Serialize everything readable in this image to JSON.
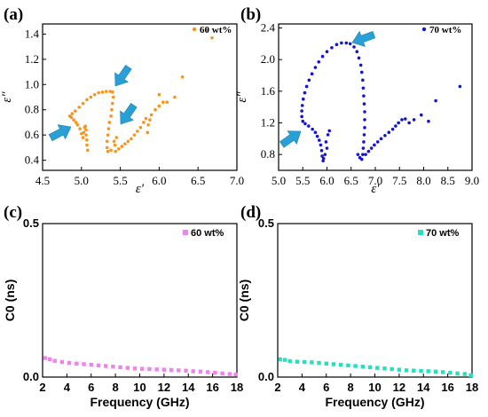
{
  "panels": {
    "a": "(a)",
    "b": "(b)",
    "c": "(c)",
    "d": "(d)"
  },
  "colors": {
    "orange": "#f7941d",
    "blue": "#1515d0",
    "pink": "#ee82ee",
    "teal": "#22e0c0",
    "arrow": "#2a9fd6"
  },
  "chart_data": [
    {
      "id": "a",
      "type": "scatter",
      "title": "",
      "xlabel": "ε′",
      "ylabel": "ε″",
      "xlim": [
        4.5,
        7.0
      ],
      "ylim": [
        0.32,
        1.48
      ],
      "xticks": [
        "4.5",
        "5.0",
        "5.5",
        "6.0",
        "6.5",
        "7.0"
      ],
      "yticks": [
        "0.4",
        "0.6",
        "0.8",
        "1.0",
        "1.2",
        "1.4"
      ],
      "legend": "60 wt%",
      "legend_position": "top-right",
      "series": [
        {
          "points": [
            [
              5.08,
              0.48
            ],
            [
              5.07,
              0.52
            ],
            [
              5.07,
              0.56
            ],
            [
              5.06,
              0.6
            ],
            [
              5.06,
              0.64
            ],
            [
              5.05,
              0.67
            ],
            [
              5.04,
              0.66
            ],
            [
              5.03,
              0.62
            ],
            [
              5.02,
              0.58
            ],
            [
              5.0,
              0.61
            ],
            [
              4.98,
              0.65
            ],
            [
              4.95,
              0.68
            ],
            [
              4.93,
              0.7
            ],
            [
              4.9,
              0.72
            ],
            [
              4.87,
              0.74
            ],
            [
              4.85,
              0.75
            ],
            [
              4.88,
              0.77
            ],
            [
              4.92,
              0.79
            ],
            [
              4.97,
              0.82
            ],
            [
              5.02,
              0.85
            ],
            [
              5.07,
              0.88
            ],
            [
              5.12,
              0.9
            ],
            [
              5.17,
              0.92
            ],
            [
              5.22,
              0.935
            ],
            [
              5.27,
              0.94
            ],
            [
              5.32,
              0.945
            ],
            [
              5.37,
              0.945
            ],
            [
              5.4,
              0.94
            ],
            [
              5.41,
              0.9
            ],
            [
              5.4,
              0.85
            ],
            [
              5.39,
              0.8
            ],
            [
              5.38,
              0.75
            ],
            [
              5.36,
              0.7
            ],
            [
              5.35,
              0.65
            ],
            [
              5.34,
              0.6
            ],
            [
              5.33,
              0.55
            ],
            [
              5.33,
              0.5
            ],
            [
              5.34,
              0.47
            ],
            [
              5.38,
              0.48
            ],
            [
              5.42,
              0.55
            ],
            [
              5.45,
              0.58
            ],
            [
              5.43,
              0.52
            ],
            [
              5.44,
              0.47
            ],
            [
              5.48,
              0.49
            ],
            [
              5.52,
              0.51
            ],
            [
              5.56,
              0.53
            ],
            [
              5.6,
              0.55
            ],
            [
              5.64,
              0.57
            ],
            [
              5.68,
              0.6
            ],
            [
              5.72,
              0.63
            ],
            [
              5.76,
              0.66
            ],
            [
              5.8,
              0.7
            ],
            [
              5.83,
              0.73
            ],
            [
              5.86,
              0.68
            ],
            [
              5.88,
              0.72
            ],
            [
              5.9,
              0.76
            ],
            [
              5.85,
              0.62
            ],
            [
              5.95,
              0.8
            ],
            [
              6.0,
              0.83
            ],
            [
              6.05,
              0.86
            ],
            [
              6.0,
              0.92
            ],
            [
              6.1,
              0.86
            ],
            [
              6.2,
              0.9
            ],
            [
              6.3,
              1.06
            ],
            [
              6.62,
              1.43
            ],
            [
              6.68,
              1.37
            ]
          ]
        }
      ]
    },
    {
      "id": "b",
      "type": "scatter",
      "title": "",
      "xlabel": "ε′",
      "ylabel": "ε″",
      "xlim": [
        5.0,
        9.0
      ],
      "ylim": [
        0.6,
        2.45
      ],
      "xticks": [
        "5.0",
        "5.5",
        "6.0",
        "6.5",
        "7.0",
        "7.5",
        "8.0",
        "8.5",
        "9.0"
      ],
      "yticks": [
        "0.8",
        "1.2",
        "1.6",
        "2.0",
        "2.4"
      ],
      "legend": "70 wt%",
      "legend_position": "top-right",
      "series": [
        {
          "points": [
            [
              5.92,
              0.72
            ],
            [
              5.9,
              0.78
            ],
            [
              5.89,
              0.85
            ],
            [
              5.87,
              0.92
            ],
            [
              5.84,
              0.98
            ],
            [
              5.8,
              1.03
            ],
            [
              5.76,
              1.08
            ],
            [
              5.7,
              1.12
            ],
            [
              5.62,
              1.16
            ],
            [
              5.55,
              1.19
            ],
            [
              5.5,
              1.22
            ],
            [
              5.48,
              1.28
            ],
            [
              5.48,
              1.35
            ],
            [
              5.49,
              1.42
            ],
            [
              5.51,
              1.5
            ],
            [
              5.54,
              1.58
            ],
            [
              5.58,
              1.66
            ],
            [
              5.63,
              1.74
            ],
            [
              5.69,
              1.82
            ],
            [
              5.76,
              1.9
            ],
            [
              5.83,
              1.97
            ],
            [
              5.91,
              2.04
            ],
            [
              6.0,
              2.1
            ],
            [
              6.1,
              2.15
            ],
            [
              6.2,
              2.19
            ],
            [
              6.3,
              2.21
            ],
            [
              6.4,
              2.21
            ],
            [
              6.48,
              2.2
            ],
            [
              6.56,
              2.16
            ],
            [
              6.62,
              2.1
            ],
            [
              6.66,
              2.02
            ],
            [
              6.7,
              1.93
            ],
            [
              6.72,
              1.84
            ],
            [
              6.74,
              1.74
            ],
            [
              6.75,
              1.64
            ],
            [
              6.76,
              1.54
            ],
            [
              6.77,
              1.44
            ],
            [
              6.78,
              1.34
            ],
            [
              6.78,
              1.24
            ],
            [
              6.78,
              1.14
            ],
            [
              6.77,
              1.05
            ],
            [
              6.76,
              0.96
            ],
            [
              6.75,
              0.88
            ],
            [
              6.74,
              0.8
            ],
            [
              6.72,
              0.74
            ],
            [
              6.68,
              0.76
            ],
            [
              6.64,
              0.8
            ],
            [
              6.8,
              0.8
            ],
            [
              6.86,
              0.84
            ],
            [
              6.92,
              0.88
            ],
            [
              6.98,
              0.92
            ],
            [
              7.05,
              0.96
            ],
            [
              7.12,
              1.0
            ],
            [
              7.2,
              1.04
            ],
            [
              7.28,
              1.08
            ],
            [
              7.36,
              1.12
            ],
            [
              7.42,
              1.16
            ],
            [
              7.48,
              1.2
            ],
            [
              7.55,
              1.24
            ],
            [
              7.62,
              1.25
            ],
            [
              7.7,
              1.2
            ],
            [
              7.8,
              1.24
            ],
            [
              7.95,
              1.3
            ],
            [
              8.1,
              1.22
            ],
            [
              8.25,
              1.48
            ],
            [
              8.75,
              1.66
            ],
            [
              6.0,
              0.88
            ],
            [
              5.98,
              0.96
            ],
            [
              6.02,
              1.05
            ],
            [
              6.05,
              1.1
            ],
            [
              5.96,
              0.8
            ],
            [
              5.93,
              0.75
            ]
          ]
        }
      ]
    },
    {
      "id": "c",
      "type": "line",
      "title": "",
      "xlabel": "Frequency (GHz)",
      "ylabel": "C0 (ns)",
      "xlim": [
        2,
        18
      ],
      "ylim": [
        0.0,
        0.5
      ],
      "xticks": [
        "2",
        "4",
        "6",
        "8",
        "10",
        "12",
        "14",
        "16",
        "18"
      ],
      "yticks": [
        "0.0",
        "0.5"
      ],
      "legend": "60 wt%",
      "legend_position": "top-right",
      "series": [
        {
          "x": [
            2.2,
            2.6,
            3.0,
            3.6,
            4.2,
            4.8,
            5.4,
            6.0,
            6.6,
            7.2,
            7.8,
            8.4,
            9.0,
            9.6,
            10.2,
            10.8,
            11.4,
            12.0,
            12.6,
            13.2,
            13.8,
            14.4,
            15.0,
            15.6,
            16.2,
            16.8,
            17.4,
            17.9
          ],
          "y": [
            0.062,
            0.058,
            0.053,
            0.049,
            0.046,
            0.044,
            0.042,
            0.04,
            0.038,
            0.036,
            0.034,
            0.032,
            0.03,
            0.028,
            0.027,
            0.026,
            0.025,
            0.024,
            0.023,
            0.022,
            0.021,
            0.019,
            0.018,
            0.016,
            0.014,
            0.012,
            0.01,
            0.008
          ]
        }
      ]
    },
    {
      "id": "d",
      "type": "line",
      "title": "",
      "xlabel": "Frequency (GHz)",
      "ylabel": "C0 (ns)",
      "xlim": [
        2,
        18
      ],
      "ylim": [
        0.0,
        0.5
      ],
      "xticks": [
        "2",
        "4",
        "6",
        "8",
        "10",
        "12",
        "14",
        "16",
        "18"
      ],
      "yticks": [
        "0.0",
        "0.5"
      ],
      "legend": "70 wt%",
      "legend_position": "top-right",
      "series": [
        {
          "x": [
            2.2,
            2.6,
            3.0,
            3.6,
            4.2,
            4.8,
            5.4,
            6.0,
            6.6,
            7.2,
            7.8,
            8.4,
            9.0,
            9.6,
            10.2,
            10.8,
            11.4,
            12.0,
            12.6,
            13.2,
            13.8,
            14.4,
            15.0,
            15.6,
            16.2,
            16.8,
            17.4,
            17.9
          ],
          "y": [
            0.058,
            0.056,
            0.052,
            0.05,
            0.049,
            0.048,
            0.046,
            0.044,
            0.042,
            0.04,
            0.038,
            0.036,
            0.034,
            0.032,
            0.03,
            0.028,
            0.026,
            0.024,
            0.022,
            0.021,
            0.02,
            0.019,
            0.018,
            0.016,
            0.014,
            0.012,
            0.01,
            0.006
          ]
        }
      ]
    }
  ]
}
